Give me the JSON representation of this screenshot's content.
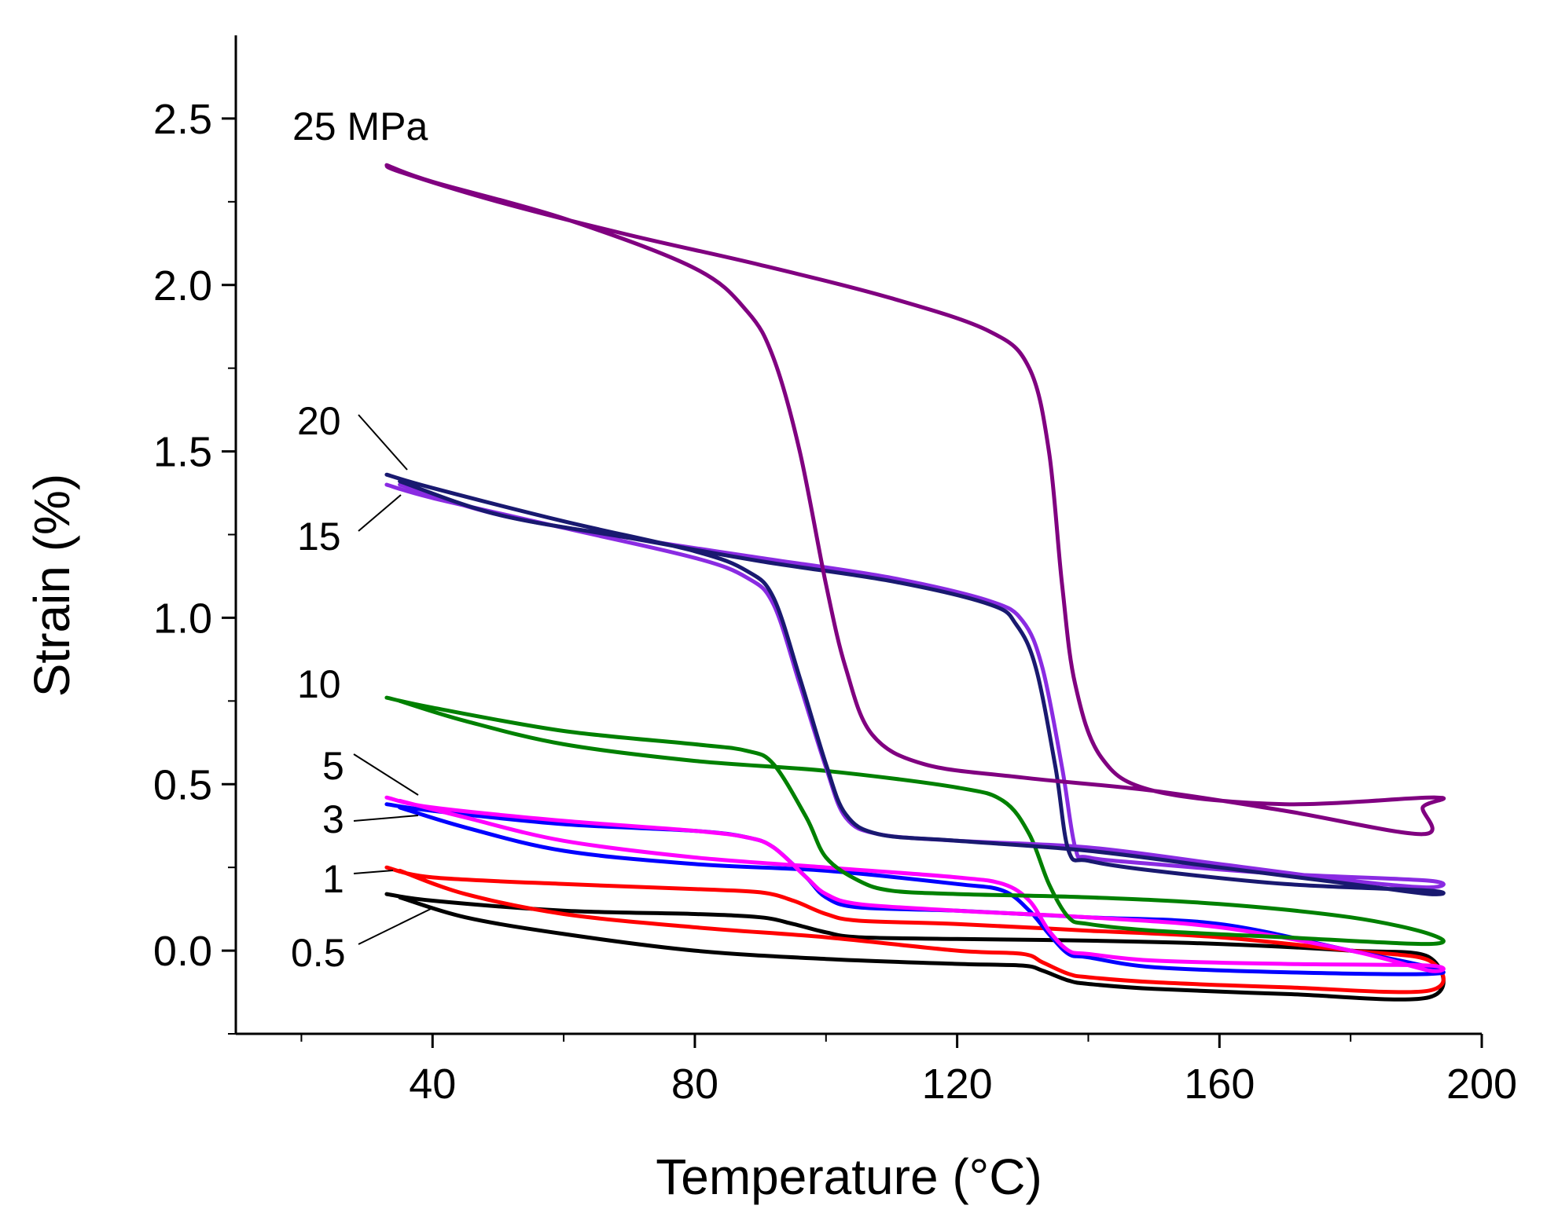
{
  "chart_data": {
    "type": "line",
    "title": "",
    "xlabel": "Temperature (°C)",
    "ylabel": "Strain (%)",
    "xlim": [
      10,
      200
    ],
    "ylim": [
      -0.25,
      2.75
    ],
    "xticks": [
      40,
      80,
      120,
      160,
      200
    ],
    "xtick_labels": [
      "40",
      "80",
      "120",
      "160",
      "200"
    ],
    "yticks": [
      0.0,
      0.5,
      1.0,
      1.5,
      2.0,
      2.5
    ],
    "ytick_labels": [
      "0.0",
      "0.5",
      "1.0",
      "1.5",
      "2.0",
      "2.5"
    ],
    "grid": false,
    "legend": "none",
    "series": [
      {
        "name": "0.5 MPa",
        "label": "0.5",
        "color": "#000000",
        "heating": [
          [
            33,
            0.17
          ],
          [
            40,
            0.15
          ],
          [
            60,
            0.12
          ],
          [
            80,
            0.11
          ],
          [
            90,
            0.1
          ],
          [
            95,
            0.08
          ],
          [
            100,
            0.055
          ],
          [
            105,
            0.04
          ],
          [
            120,
            0.035
          ],
          [
            140,
            0.03
          ],
          [
            160,
            0.02
          ],
          [
            180,
            0.0
          ],
          [
            192,
            -0.02
          ]
        ],
        "cooling": [
          [
            192,
            -0.14
          ],
          [
            170,
            -0.13
          ],
          [
            150,
            -0.115
          ],
          [
            140,
            -0.1
          ],
          [
            137,
            -0.09
          ],
          [
            133,
            -0.06
          ],
          [
            130,
            -0.045
          ],
          [
            120,
            -0.04
          ],
          [
            100,
            -0.025
          ],
          [
            80,
            0.0
          ],
          [
            60,
            0.05
          ],
          [
            45,
            0.1
          ],
          [
            35,
            0.16
          ]
        ]
      },
      {
        "name": "1 MPa",
        "label": "1",
        "color": "#ff0000",
        "heating": [
          [
            33,
            0.25
          ],
          [
            40,
            0.22
          ],
          [
            60,
            0.2
          ],
          [
            80,
            0.185
          ],
          [
            90,
            0.175
          ],
          [
            95,
            0.15
          ],
          [
            100,
            0.11
          ],
          [
            105,
            0.09
          ],
          [
            120,
            0.08
          ],
          [
            140,
            0.06
          ],
          [
            160,
            0.04
          ],
          [
            180,
            0.0
          ],
          [
            192,
            -0.03
          ]
        ],
        "cooling": [
          [
            192,
            -0.12
          ],
          [
            170,
            -0.11
          ],
          [
            150,
            -0.095
          ],
          [
            140,
            -0.08
          ],
          [
            137,
            -0.07
          ],
          [
            133,
            -0.035
          ],
          [
            130,
            -0.01
          ],
          [
            120,
            0.0
          ],
          [
            100,
            0.04
          ],
          [
            80,
            0.07
          ],
          [
            60,
            0.11
          ],
          [
            45,
            0.17
          ],
          [
            35,
            0.24
          ]
        ]
      },
      {
        "name": "3 MPa",
        "label": "3",
        "color": "#0000ff",
        "heating": [
          [
            33,
            0.44
          ],
          [
            40,
            0.42
          ],
          [
            60,
            0.38
          ],
          [
            80,
            0.36
          ],
          [
            88,
            0.34
          ],
          [
            92,
            0.31
          ],
          [
            97,
            0.22
          ],
          [
            100,
            0.16
          ],
          [
            105,
            0.13
          ],
          [
            120,
            0.12
          ],
          [
            140,
            0.1
          ],
          [
            160,
            0.08
          ],
          [
            180,
            0.0
          ],
          [
            192,
            -0.05
          ]
        ],
        "cooling": [
          [
            192,
            -0.07
          ],
          [
            170,
            -0.065
          ],
          [
            150,
            -0.05
          ],
          [
            140,
            -0.02
          ],
          [
            137,
            -0.01
          ],
          [
            134,
            0.05
          ],
          [
            131,
            0.12
          ],
          [
            127,
            0.18
          ],
          [
            120,
            0.2
          ],
          [
            100,
            0.24
          ],
          [
            80,
            0.26
          ],
          [
            60,
            0.3
          ],
          [
            45,
            0.37
          ],
          [
            35,
            0.43
          ]
        ]
      },
      {
        "name": "5 MPa",
        "label": "5",
        "color": "#ff00ff",
        "heating": [
          [
            33,
            0.46
          ],
          [
            40,
            0.43
          ],
          [
            60,
            0.39
          ],
          [
            80,
            0.36
          ],
          [
            88,
            0.34
          ],
          [
            92,
            0.31
          ],
          [
            97,
            0.22
          ],
          [
            100,
            0.17
          ],
          [
            105,
            0.14
          ],
          [
            120,
            0.12
          ],
          [
            140,
            0.1
          ],
          [
            160,
            0.07
          ],
          [
            180,
            0.0
          ],
          [
            192,
            -0.06
          ]
        ],
        "cooling": [
          [
            192,
            -0.045
          ],
          [
            170,
            -0.04
          ],
          [
            150,
            -0.03
          ],
          [
            140,
            -0.01
          ],
          [
            137,
            0.0
          ],
          [
            134,
            0.06
          ],
          [
            131,
            0.15
          ],
          [
            127,
            0.2
          ],
          [
            120,
            0.22
          ],
          [
            100,
            0.25
          ],
          [
            80,
            0.28
          ],
          [
            60,
            0.33
          ],
          [
            45,
            0.4
          ],
          [
            35,
            0.45
          ]
        ]
      },
      {
        "name": "10 MPa",
        "label": "10",
        "color": "#008000",
        "heating": [
          [
            33,
            0.76
          ],
          [
            40,
            0.73
          ],
          [
            60,
            0.66
          ],
          [
            80,
            0.62
          ],
          [
            88,
            0.6
          ],
          [
            92,
            0.56
          ],
          [
            97,
            0.4
          ],
          [
            100,
            0.28
          ],
          [
            105,
            0.21
          ],
          [
            110,
            0.18
          ],
          [
            120,
            0.17
          ],
          [
            140,
            0.16
          ],
          [
            160,
            0.14
          ],
          [
            180,
            0.1
          ],
          [
            192,
            0.05
          ]
        ],
        "cooling": [
          [
            192,
            0.02
          ],
          [
            170,
            0.04
          ],
          [
            150,
            0.06
          ],
          [
            140,
            0.08
          ],
          [
            137,
            0.1
          ],
          [
            134,
            0.2
          ],
          [
            131,
            0.35
          ],
          [
            127,
            0.45
          ],
          [
            120,
            0.49
          ],
          [
            100,
            0.54
          ],
          [
            80,
            0.57
          ],
          [
            60,
            0.62
          ],
          [
            45,
            0.69
          ],
          [
            35,
            0.75
          ]
        ]
      },
      {
        "name": "15 MPa",
        "label": "15",
        "color": "#8a2be2",
        "heating": [
          [
            33,
            1.4
          ],
          [
            40,
            1.36
          ],
          [
            60,
            1.27
          ],
          [
            80,
            1.18
          ],
          [
            88,
            1.12
          ],
          [
            92,
            1.04
          ],
          [
            96,
            0.8
          ],
          [
            100,
            0.55
          ],
          [
            103,
            0.4
          ],
          [
            108,
            0.35
          ],
          [
            120,
            0.33
          ],
          [
            140,
            0.31
          ],
          [
            160,
            0.26
          ],
          [
            180,
            0.21
          ],
          [
            192,
            0.19
          ]
        ],
        "cooling": [
          [
            192,
            0.21
          ],
          [
            170,
            0.23
          ],
          [
            150,
            0.26
          ],
          [
            140,
            0.28
          ],
          [
            138,
            0.31
          ],
          [
            136,
            0.55
          ],
          [
            133,
            0.85
          ],
          [
            130,
            0.99
          ],
          [
            125,
            1.05
          ],
          [
            110,
            1.12
          ],
          [
            90,
            1.18
          ],
          [
            70,
            1.24
          ],
          [
            50,
            1.31
          ],
          [
            35,
            1.4
          ]
        ]
      },
      {
        "name": "20 MPa",
        "label": "20",
        "color": "#191970",
        "heating": [
          [
            33,
            1.43
          ],
          [
            40,
            1.39
          ],
          [
            60,
            1.29
          ],
          [
            80,
            1.2
          ],
          [
            88,
            1.14
          ],
          [
            92,
            1.06
          ],
          [
            96,
            0.82
          ],
          [
            100,
            0.56
          ],
          [
            103,
            0.41
          ],
          [
            108,
            0.35
          ],
          [
            120,
            0.33
          ],
          [
            140,
            0.3
          ],
          [
            160,
            0.25
          ],
          [
            180,
            0.2
          ],
          [
            192,
            0.17
          ]
        ],
        "cooling": [
          [
            192,
            0.18
          ],
          [
            170,
            0.2
          ],
          [
            150,
            0.24
          ],
          [
            140,
            0.27
          ],
          [
            137,
            0.3
          ],
          [
            135,
            0.55
          ],
          [
            132,
            0.85
          ],
          [
            129,
            0.98
          ],
          [
            125,
            1.04
          ],
          [
            110,
            1.11
          ],
          [
            90,
            1.17
          ],
          [
            70,
            1.24
          ],
          [
            50,
            1.31
          ],
          [
            35,
            1.41
          ]
        ]
      },
      {
        "name": "25 MPa",
        "label": "25 MPa",
        "color": "#800080",
        "heating": [
          [
            33,
            2.36
          ],
          [
            40,
            2.31
          ],
          [
            60,
            2.2
          ],
          [
            80,
            2.05
          ],
          [
            88,
            1.92
          ],
          [
            92,
            1.78
          ],
          [
            96,
            1.5
          ],
          [
            100,
            1.1
          ],
          [
            103,
            0.85
          ],
          [
            107,
            0.65
          ],
          [
            115,
            0.56
          ],
          [
            130,
            0.52
          ],
          [
            150,
            0.48
          ],
          [
            170,
            0.42
          ],
          [
            191,
            0.35
          ]
        ],
        "cooling": [
          [
            191,
            0.43
          ],
          [
            193,
            0.46
          ],
          [
            170,
            0.44
          ],
          [
            150,
            0.48
          ],
          [
            142,
            0.58
          ],
          [
            138,
            0.8
          ],
          [
            136,
            1.1
          ],
          [
            134,
            1.5
          ],
          [
            131,
            1.75
          ],
          [
            125,
            1.86
          ],
          [
            110,
            1.96
          ],
          [
            90,
            2.06
          ],
          [
            70,
            2.15
          ],
          [
            50,
            2.25
          ],
          [
            35,
            2.34
          ],
          [
            33,
            2.36
          ]
        ]
      }
    ],
    "annotations": [
      {
        "text": "25 MPa",
        "series": "25 MPa"
      },
      {
        "text": "20",
        "series": "20 MPa"
      },
      {
        "text": "15",
        "series": "15 MPa"
      },
      {
        "text": "10",
        "series": "10 MPa"
      },
      {
        "text": "5",
        "series": "5 MPa"
      },
      {
        "text": "3",
        "series": "3 MPa"
      },
      {
        "text": "1",
        "series": "1 MPa"
      },
      {
        "text": "0.5",
        "series": "0.5 MPa"
      }
    ]
  }
}
